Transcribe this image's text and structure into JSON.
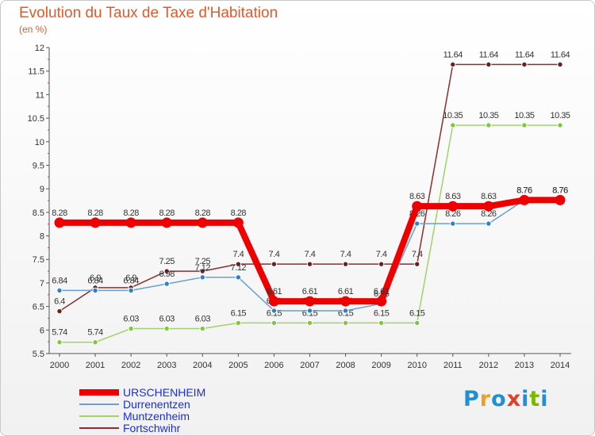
{
  "title": "Evolution du Taux de Taxe d'Habitation",
  "subtitle": "(en %)",
  "brand": {
    "letters": [
      "P",
      "r",
      "o",
      "x",
      "i",
      "t",
      "i"
    ],
    "colors": [
      "#1f8fd6",
      "#f0a020",
      "#1f8fd6",
      "#e0402a",
      "#1f8fd6",
      "#7ab800",
      "#1f8fd6"
    ]
  },
  "chart_data": {
    "type": "line",
    "x": [
      "2000",
      "2001",
      "2002",
      "2003",
      "2004",
      "2005",
      "2006",
      "2007",
      "2008",
      "2009",
      "2010",
      "2011",
      "2012",
      "2013",
      "2014"
    ],
    "ylim": [
      5.5,
      12
    ],
    "yticks": [
      "5.5",
      "6",
      "6.5",
      "7",
      "7.5",
      "8",
      "8.5",
      "9",
      "9.5",
      "10",
      "10.5",
      "11",
      "11.5",
      "12"
    ],
    "grid": false,
    "legend_position": "bottom-left",
    "series": [
      {
        "name": "Fortschwihr",
        "color": "#8b2e2e",
        "marker": "#6b1f1f",
        "values": [
          6.4,
          6.9,
          6.9,
          7.25,
          7.25,
          7.4,
          7.4,
          7.4,
          7.4,
          7.4,
          7.4,
          11.64,
          11.64,
          11.64,
          11.64
        ],
        "labels": [
          "6.4",
          "6.9",
          "6.9",
          "7.25",
          "7.25",
          "7.4",
          "7.4",
          "7.4",
          "7.4",
          "7.4",
          "7.4",
          "11.64",
          "11.64",
          "11.64",
          "11.64"
        ]
      },
      {
        "name": "Muntzenheim",
        "color": "#9ed36a",
        "marker": "#7ec83a",
        "values": [
          5.74,
          5.74,
          6.03,
          6.03,
          6.03,
          6.15,
          6.15,
          6.15,
          6.15,
          6.15,
          6.15,
          10.35,
          10.35,
          10.35,
          10.35
        ],
        "labels": [
          "5.74",
          "5.74",
          "6.03",
          "6.03",
          "6.03",
          "6.15",
          "6.15",
          "6.15",
          "6.15",
          "6.15",
          "6.15",
          "10.35",
          "10.35",
          "10.35",
          "10.35"
        ]
      },
      {
        "name": "Durrenentzen",
        "color": "#6aa0d0",
        "marker": "#2f7fc9",
        "values": [
          6.84,
          6.84,
          6.84,
          6.98,
          7.12,
          7.12,
          6.41,
          6.41,
          6.41,
          6.56,
          8.26,
          8.26,
          8.26,
          8.76,
          8.76
        ],
        "labels": [
          "6.84",
          "6.84",
          "6.84",
          "6.98",
          "7.12",
          "7.12",
          "6.41",
          "6.41",
          "6.41",
          "6.56",
          "8.26",
          "8.26",
          "8.26",
          "8.76",
          "8.76"
        ]
      },
      {
        "name": "URSCHENHEIM",
        "color": "#ee0000",
        "marker": "#ee0000",
        "values": [
          8.28,
          8.28,
          8.28,
          8.28,
          8.28,
          8.28,
          6.61,
          6.61,
          6.61,
          6.61,
          8.63,
          8.63,
          8.63,
          8.76,
          8.76
        ],
        "labels": [
          "8.28",
          "8.28",
          "8.28",
          "8.28",
          "8.28",
          "8.28",
          "6.61",
          "6.61",
          "6.61",
          "6.61",
          "8.63",
          "8.63",
          "8.63",
          "8.76",
          "8.76"
        ]
      }
    ]
  },
  "legend": [
    {
      "label": "URSCHENHEIM",
      "color": "#ee0000",
      "thickness": 8
    },
    {
      "label": "Durrenentzen",
      "color": "#6aa0d0",
      "thickness": 2
    },
    {
      "label": "Muntzenheim",
      "color": "#9ed36a",
      "thickness": 2
    },
    {
      "label": "Fortschwihr",
      "color": "#8b2e2e",
      "thickness": 2
    }
  ]
}
